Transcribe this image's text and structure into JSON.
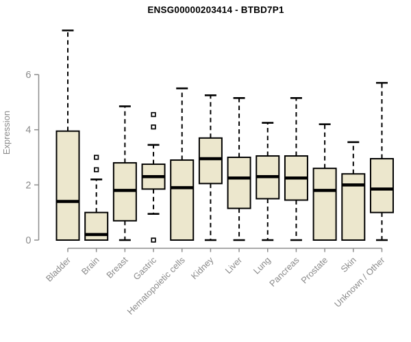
{
  "title": "ENSG00000203414 - BTBD7P1",
  "colors": {
    "box_fill": "#ece7cd",
    "box_stroke": "#000000",
    "median": "#000000",
    "whisker": "#000000",
    "axis": "#8c8c8c",
    "tick_text": "#8a8a8a",
    "title_text": "#000000",
    "background": "#ffffff"
  },
  "chart_data": {
    "type": "boxplot",
    "title": "ENSG00000203414 - BTBD7P1",
    "xlabel": "",
    "ylabel": "Expression",
    "yticks": [
      0,
      2,
      4,
      6
    ],
    "ylim": [
      -0.2,
      7.9
    ],
    "grid": false,
    "legend": false,
    "categories": [
      "Bladder",
      "Brain",
      "Breast",
      "Gastric",
      "Hematopoietic cells",
      "Kidney",
      "Liver",
      "Lung",
      "Pancreas",
      "Prostate",
      "Skin",
      "Unknown / Other"
    ],
    "series": [
      {
        "category": "Bladder",
        "whisker_low": 0,
        "q1": 0,
        "median": 1.4,
        "q3": 3.95,
        "whisker_high": 7.6,
        "outliers": []
      },
      {
        "category": "Brain",
        "whisker_low": 0,
        "q1": 0,
        "median": 0.2,
        "q3": 1.0,
        "whisker_high": 2.2,
        "outliers": [
          2.55,
          3.0
        ]
      },
      {
        "category": "Breast",
        "whisker_low": 0,
        "q1": 0.7,
        "median": 1.8,
        "q3": 2.8,
        "whisker_high": 4.85,
        "outliers": []
      },
      {
        "category": "Gastric",
        "whisker_low": 0.95,
        "q1": 1.85,
        "median": 2.3,
        "q3": 2.75,
        "whisker_high": 3.45,
        "outliers": [
          0,
          4.1,
          4.55
        ]
      },
      {
        "category": "Hematopoietic cells",
        "whisker_low": 0,
        "q1": 0,
        "median": 1.9,
        "q3": 2.9,
        "whisker_high": 5.5,
        "outliers": []
      },
      {
        "category": "Kidney",
        "whisker_low": 0,
        "q1": 2.05,
        "median": 2.95,
        "q3": 3.7,
        "whisker_high": 5.25,
        "outliers": []
      },
      {
        "category": "Liver",
        "whisker_low": 0,
        "q1": 1.15,
        "median": 2.25,
        "q3": 3.0,
        "whisker_high": 5.15,
        "outliers": []
      },
      {
        "category": "Lung",
        "whisker_low": 0,
        "q1": 1.5,
        "median": 2.3,
        "q3": 3.05,
        "whisker_high": 4.25,
        "outliers": []
      },
      {
        "category": "Pancreas",
        "whisker_low": 0,
        "q1": 1.45,
        "median": 2.25,
        "q3": 3.05,
        "whisker_high": 5.15,
        "outliers": []
      },
      {
        "category": "Prostate",
        "whisker_low": 0,
        "q1": 0,
        "median": 1.8,
        "q3": 2.6,
        "whisker_high": 4.2,
        "outliers": []
      },
      {
        "category": "Skin",
        "whisker_low": 0,
        "q1": 0,
        "median": 2.0,
        "q3": 2.4,
        "whisker_high": 3.55,
        "outliers": []
      },
      {
        "category": "Unknown / Other",
        "whisker_low": 0,
        "q1": 1.0,
        "median": 1.85,
        "q3": 2.95,
        "whisker_high": 5.7,
        "outliers": []
      }
    ]
  }
}
